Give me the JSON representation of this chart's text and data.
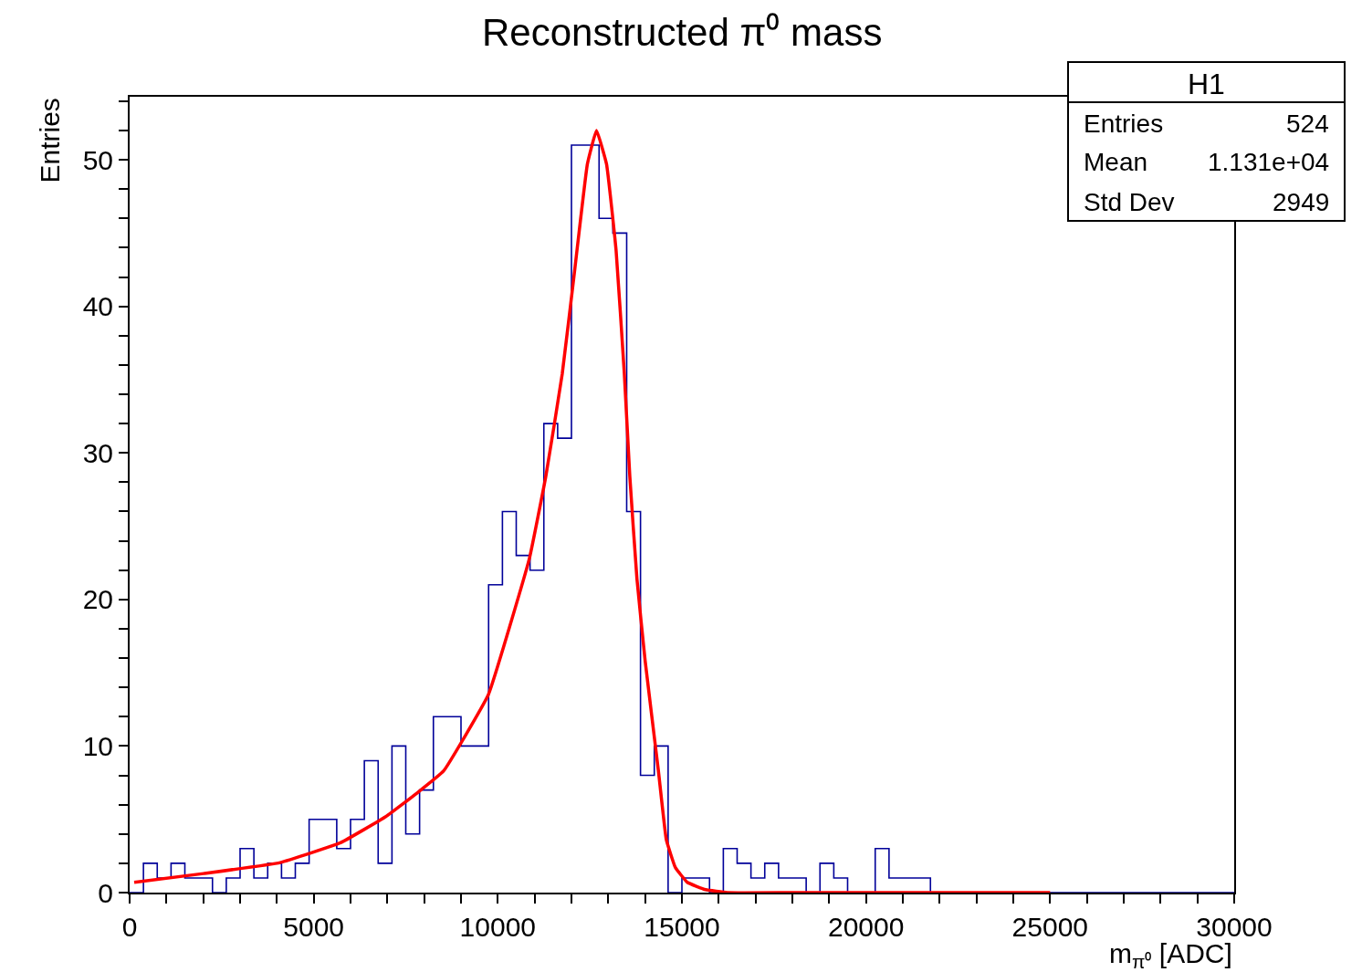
{
  "chart_data": {
    "type": "histogram",
    "title": "Reconstructed π⁰ mass",
    "xlabel": "m$_{π⁰}$ [ADC]",
    "ylabel": "Entries",
    "bins": [
      0,
      375,
      750,
      1125,
      1500,
      1875,
      2250,
      2625,
      3000,
      3375,
      3750,
      4125,
      4500,
      4875,
      5250,
      5625,
      6000,
      6375,
      6750,
      7125,
      7500,
      7875,
      8250,
      8625,
      9000,
      9375,
      9750,
      10125,
      10500,
      10875,
      11250,
      11625,
      12000,
      12375,
      12750,
      13125,
      13500,
      13875,
      14250,
      14625,
      15000,
      15375,
      15750,
      16125,
      16500,
      16875,
      17250,
      17625,
      18000,
      18375,
      18750,
      19125,
      19500,
      19875,
      20250,
      20625,
      21000,
      21375,
      21750,
      22125,
      22500,
      22875,
      23250,
      23625,
      24000,
      24375,
      24750,
      25125,
      25500,
      25875,
      26250,
      26625,
      27000,
      27375,
      27750,
      28125,
      28500,
      28875,
      29250,
      29625,
      30000
    ],
    "series": [
      {
        "type": "histogram",
        "color": "#000099",
        "values": [
          0,
          2,
          1,
          2,
          1,
          1,
          0,
          1,
          3,
          1,
          2,
          1,
          2,
          5,
          5,
          3,
          5,
          9,
          2,
          10,
          4,
          7,
          12,
          12,
          10,
          10,
          21,
          26,
          23,
          22,
          32,
          31,
          51,
          51,
          46,
          45,
          26,
          8,
          10,
          0,
          1,
          1,
          0,
          3,
          2,
          1,
          2,
          1,
          1,
          0,
          2,
          1,
          0,
          0,
          3,
          1,
          1,
          1,
          0,
          0,
          0,
          0,
          0,
          0,
          0,
          0,
          0,
          0,
          0,
          0,
          0,
          0,
          0,
          0,
          0,
          0,
          0,
          0,
          0,
          0
        ]
      },
      {
        "type": "line",
        "color": "#ff0000",
        "x": [
          124,
          2008,
          4091,
          5727,
          6967,
          7809,
          8528,
          9742,
          10858,
          11304,
          11750,
          12085,
          12432,
          12680,
          12953,
          13213,
          13436,
          13585,
          13779,
          14002,
          14362,
          14577,
          14824,
          15147,
          15643,
          16237,
          18000,
          25000
        ],
        "values": [
          0.7,
          1.3,
          2.05,
          3.4,
          5.2,
          6.8,
          8.3,
          13.5,
          22.8,
          28.4,
          35.4,
          42.4,
          49.7,
          52,
          49.7,
          43.8,
          35.4,
          28.4,
          21.4,
          15.8,
          8.3,
          3.6,
          1.7,
          0.7,
          0.2,
          0,
          0,
          0
        ]
      }
    ],
    "xlim": [
      0,
      30000
    ],
    "ylim": [
      0,
      54.3
    ],
    "xticks": [
      0,
      {
        "value": 1000,
        "label": null
      },
      {
        "value": 2000,
        "label": null
      },
      {
        "value": 3000,
        "label": null
      },
      {
        "value": 4000,
        "label": null
      },
      5000,
      {
        "value": 6000,
        "label": null
      },
      {
        "value": 7000,
        "label": null
      },
      {
        "value": 8000,
        "label": null
      },
      {
        "value": 9000,
        "label": null
      },
      10000,
      {
        "value": 11000,
        "label": null
      },
      {
        "value": 12000,
        "label": null
      },
      {
        "value": 13000,
        "label": null
      },
      {
        "value": 14000,
        "label": null
      },
      15000,
      {
        "value": 16000,
        "label": null
      },
      {
        "value": 17000,
        "label": null
      },
      {
        "value": 18000,
        "label": null
      },
      {
        "value": 19000,
        "label": null
      },
      20000,
      {
        "value": 21000,
        "label": null
      },
      {
        "value": 22000,
        "label": null
      },
      {
        "value": 23000,
        "label": null
      },
      {
        "value": 24000,
        "label": null
      },
      25000,
      {
        "value": 26000,
        "label": null
      },
      {
        "value": 27000,
        "label": null
      },
      {
        "value": 28000,
        "label": null
      },
      {
        "value": 29000,
        "label": null
      },
      30000
    ],
    "yticks": [
      0,
      {
        "value": 2,
        "label": null
      },
      {
        "value": 4,
        "label": null
      },
      {
        "value": 6,
        "label": null
      },
      {
        "value": 8,
        "label": null
      },
      10,
      {
        "value": 12,
        "label": null
      },
      {
        "value": 14,
        "label": null
      },
      {
        "value": 16,
        "label": null
      },
      {
        "value": 18,
        "label": null
      },
      20,
      {
        "value": 22,
        "label": null
      },
      {
        "value": 24,
        "label": null
      },
      {
        "value": 26,
        "label": null
      },
      {
        "value": 28,
        "label": null
      },
      30,
      {
        "value": 32,
        "label": null
      },
      {
        "value": 34,
        "label": null
      },
      {
        "value": 36,
        "label": null
      },
      {
        "value": 38,
        "label": null
      },
      40,
      {
        "value": 42,
        "label": null
      },
      {
        "value": 44,
        "label": null
      },
      {
        "value": 46,
        "label": null
      },
      {
        "value": 48,
        "label": null
      },
      50,
      {
        "value": 52,
        "label": null
      },
      {
        "value": 54,
        "label": null
      }
    ],
    "annotations": [
      "H1",
      "Entries",
      "524",
      "Mean",
      "1.131e+04",
      "Std Dev",
      "2949"
    ]
  }
}
